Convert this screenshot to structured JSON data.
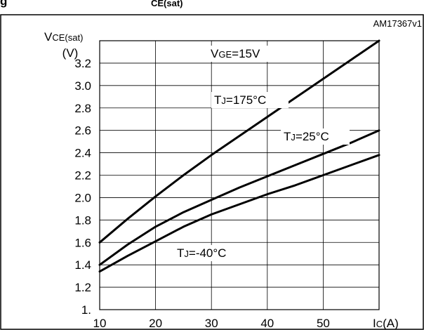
{
  "header": {
    "title_fragment": "g",
    "title_sub_fragment": "CE(sat)"
  },
  "chart_data": {
    "type": "line",
    "figure_id": "AM17367v1",
    "ylabel_main": "V",
    "ylabel_sub": "CE(sat)",
    "ylabel_unit": "(V)",
    "xlabel_main": "I",
    "xlabel_sub": "C",
    "xlabel_unit": "(A)",
    "xlim": [
      10,
      60
    ],
    "ylim": [
      1.0,
      3.4
    ],
    "x_ticks": [
      10,
      20,
      30,
      40,
      50
    ],
    "x_tick_labels": [
      "10",
      "20",
      "30",
      "40",
      "50"
    ],
    "y_ticks": [
      1.0,
      1.2,
      1.4,
      1.6,
      1.8,
      2.0,
      2.2,
      2.4,
      2.6,
      2.8,
      3.0,
      3.2
    ],
    "y_tick_labels": [
      "1.",
      "1.2",
      "1.4",
      "1.6",
      "1.8",
      "2.0",
      "2.2",
      "2.4",
      "2.6",
      "2.8",
      "3.0",
      "3.2"
    ],
    "grid": true,
    "condition": {
      "main": "V",
      "sub": "GE",
      "rest": "=15V"
    },
    "series": [
      {
        "name": "TJ=175°C",
        "label_main": "T",
        "label_sub": "J",
        "label_rest": "=175°C",
        "x": [
          10,
          15,
          20,
          25,
          30,
          35,
          40,
          45,
          50,
          55,
          60
        ],
        "y": [
          1.6,
          1.81,
          2.01,
          2.2,
          2.38,
          2.55,
          2.72,
          2.89,
          3.06,
          3.23,
          3.4
        ]
      },
      {
        "name": "TJ=25°C",
        "label_main": "T",
        "label_sub": "J",
        "label_rest": "=25°C",
        "x": [
          10,
          15,
          20,
          25,
          30,
          35,
          40,
          45,
          50,
          55,
          60
        ],
        "y": [
          1.4,
          1.58,
          1.74,
          1.87,
          1.98,
          2.09,
          2.19,
          2.29,
          2.39,
          2.49,
          2.6
        ]
      },
      {
        "name": "TJ=-40°C",
        "label_main": "T",
        "label_sub": "J",
        "label_rest": "=-40°C",
        "x": [
          10,
          15,
          20,
          25,
          30,
          35,
          40,
          45,
          50,
          55,
          60
        ],
        "y": [
          1.34,
          1.48,
          1.61,
          1.74,
          1.85,
          1.94,
          2.03,
          2.11,
          2.2,
          2.29,
          2.38
        ]
      }
    ]
  }
}
